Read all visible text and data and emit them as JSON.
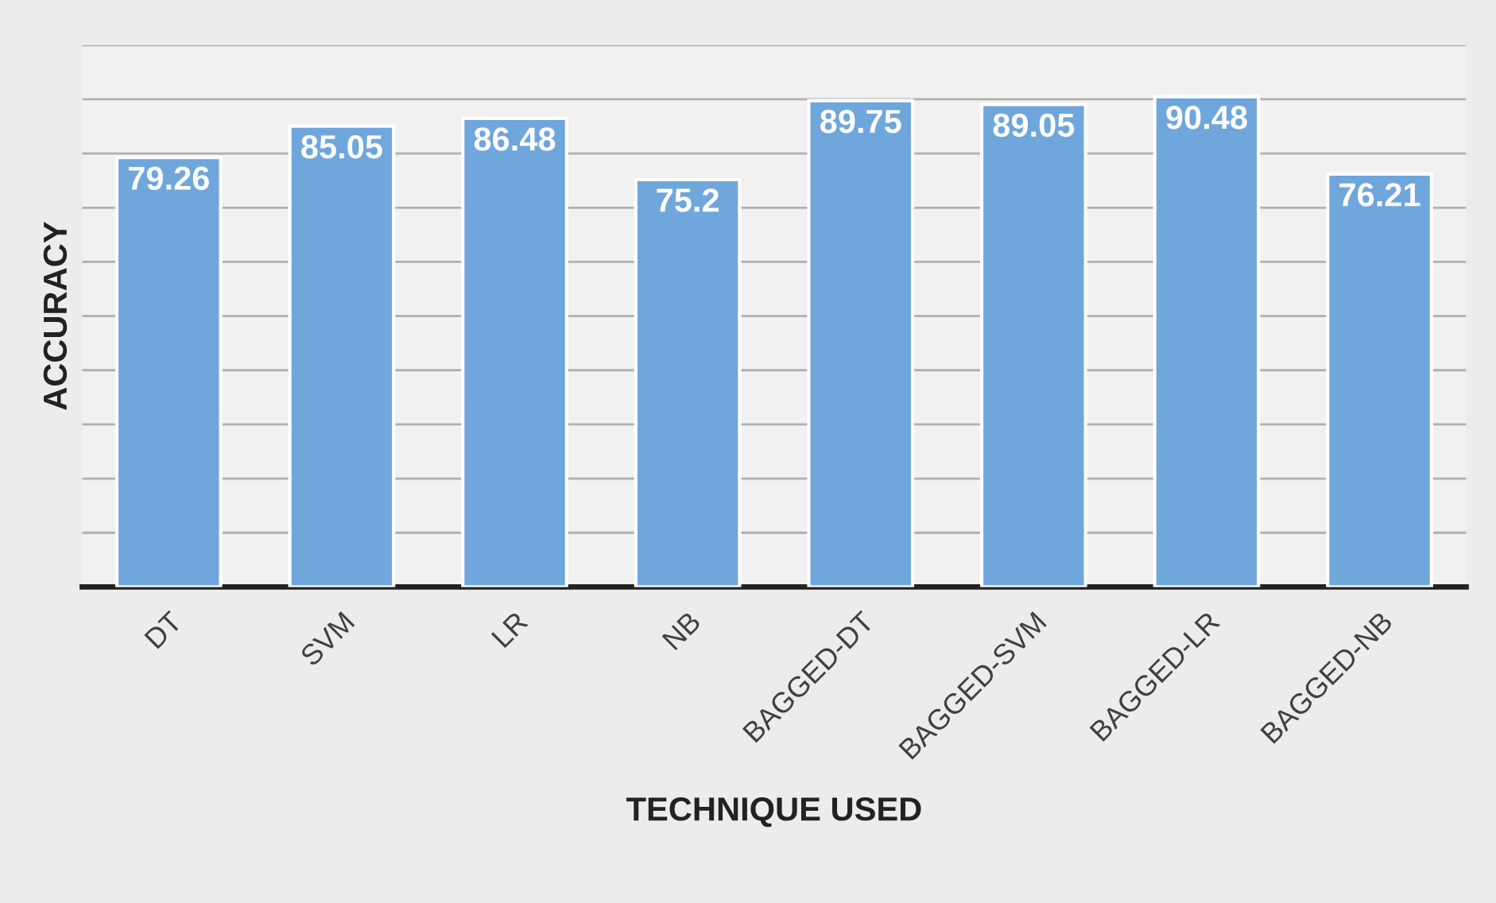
{
  "chart_data": {
    "type": "bar",
    "xlabel": "TECHNIQUE USED",
    "ylabel": "ACCURACY",
    "categories": [
      "DT",
      "SVM",
      "LR",
      "NB",
      "BAGGED-DT",
      "BAGGED-SVM",
      "BAGGED-LR",
      "BAGGED-NB"
    ],
    "values": [
      79.26,
      85.05,
      86.48,
      75.2,
      89.75,
      89.05,
      90.48,
      76.21
    ],
    "color": "#6fa6dc",
    "data_labels": true,
    "ylim": [
      0,
      100
    ],
    "yticks": [
      {
        "value": 0,
        "label": null
      },
      {
        "value": 10,
        "label": null
      },
      {
        "value": 20,
        "label": null
      },
      {
        "value": 30,
        "label": null
      },
      {
        "value": 40,
        "label": null
      },
      {
        "value": 50,
        "label": null
      },
      {
        "value": 60,
        "label": null
      },
      {
        "value": 70,
        "label": null
      },
      {
        "value": 80,
        "label": null
      },
      {
        "value": 90,
        "label": null
      },
      {
        "value": 100,
        "label": null
      }
    ],
    "grid": "y",
    "tick_labels": "x",
    "legend": false
  }
}
